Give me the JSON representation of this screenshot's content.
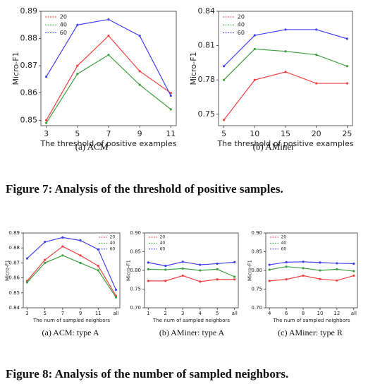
{
  "chart_data": [
    {
      "type": "line",
      "categories": [
        "3",
        "5",
        "7",
        "9",
        "11"
      ],
      "xlabel": "The threshold of positive examples",
      "ylabel": "Micro-F1",
      "ylim": [
        0.848,
        0.89
      ],
      "yticks": [
        0.85,
        0.86,
        0.87,
        0.88,
        0.89
      ],
      "legend": "upper left",
      "caption": "(a)  ACM",
      "series": [
        {
          "name": "20",
          "color": "#f04040",
          "values": [
            0.85,
            0.87,
            0.881,
            0.868,
            0.86
          ]
        },
        {
          "name": "40",
          "color": "#3fa03f",
          "values": [
            0.849,
            0.867,
            0.874,
            0.863,
            0.854
          ]
        },
        {
          "name": "60",
          "color": "#4040f0",
          "values": [
            0.866,
            0.885,
            0.887,
            0.881,
            0.859
          ]
        }
      ]
    },
    {
      "type": "line",
      "categories": [
        "5",
        "10",
        "15",
        "20",
        "25"
      ],
      "xlabel": "The threshold of positive examples",
      "ylabel": "Micro-F1",
      "ylim": [
        0.74,
        0.84
      ],
      "yticks": [
        0.75,
        0.78,
        0.81,
        0.84
      ],
      "legend": "upper left",
      "caption": "(b)  AMiner",
      "series": [
        {
          "name": "20",
          "color": "#f04040",
          "values": [
            0.745,
            0.78,
            0.787,
            0.777,
            0.777
          ]
        },
        {
          "name": "40",
          "color": "#3fa03f",
          "values": [
            0.78,
            0.807,
            0.805,
            0.802,
            0.792
          ]
        },
        {
          "name": "60",
          "color": "#4040f0",
          "values": [
            0.792,
            0.819,
            0.824,
            0.824,
            0.816
          ]
        }
      ]
    },
    {
      "type": "line",
      "categories": [
        "3",
        "5",
        "7",
        "9",
        "11",
        "all"
      ],
      "xlabel": "The num of sampled neighbors",
      "ylabel": "Micro-F1",
      "ylim": [
        0.84,
        0.89
      ],
      "yticks": [
        0.84,
        0.85,
        0.86,
        0.87,
        0.88,
        0.89
      ],
      "legend": "upper right",
      "caption": "(a)  ACM: type A",
      "series": [
        {
          "name": "20",
          "color": "#f04040",
          "values": [
            0.858,
            0.872,
            0.881,
            0.875,
            0.868,
            0.848
          ]
        },
        {
          "name": "40",
          "color": "#3fa03f",
          "values": [
            0.857,
            0.87,
            0.875,
            0.87,
            0.865,
            0.847
          ]
        },
        {
          "name": "60",
          "color": "#4040f0",
          "values": [
            0.873,
            0.884,
            0.887,
            0.885,
            0.879,
            0.852
          ]
        }
      ]
    },
    {
      "type": "line",
      "categories": [
        "1",
        "2",
        "3",
        "4",
        "5",
        "all"
      ],
      "xlabel": "The num of sampled neighbors",
      "ylabel": "Micro-F1",
      "ylim": [
        0.7,
        0.9
      ],
      "yticks": [
        {
          "value": 0.7,
          "label": "0.70"
        },
        0.75,
        {
          "value": 0.8,
          "label": "0.80"
        },
        0.85,
        {
          "value": 0.9,
          "label": "0.90"
        }
      ],
      "legend": "upper left",
      "caption": "(b)  AMiner: type A",
      "series": [
        {
          "name": "20",
          "color": "#f04040",
          "values": [
            0.772,
            0.772,
            0.786,
            0.77,
            0.776,
            0.776
          ]
        },
        {
          "name": "40",
          "color": "#3fa03f",
          "values": [
            0.803,
            0.802,
            0.805,
            0.8,
            0.803,
            0.783
          ]
        },
        {
          "name": "60",
          "color": "#4040f0",
          "values": [
            0.821,
            0.812,
            0.823,
            0.815,
            0.818,
            0.822
          ]
        }
      ]
    },
    {
      "type": "line",
      "categories": [
        "4",
        "6",
        "8",
        "10",
        "12",
        "all"
      ],
      "xlabel": "The num of sampled neighbors",
      "ylabel": "Micro-F1",
      "ylim": [
        0.7,
        0.9
      ],
      "yticks": [
        {
          "value": 0.7,
          "label": "0.70"
        },
        0.75,
        {
          "value": 0.8,
          "label": "0.80"
        },
        0.85,
        {
          "value": 0.9,
          "label": "0.90"
        }
      ],
      "legend": "upper left",
      "caption": "(c)  AMiner: type R",
      "series": [
        {
          "name": "20",
          "color": "#f04040",
          "values": [
            0.772,
            0.776,
            0.786,
            0.777,
            0.773,
            0.786
          ]
        },
        {
          "name": "40",
          "color": "#3fa03f",
          "values": [
            0.802,
            0.81,
            0.806,
            0.8,
            0.803,
            0.798
          ]
        },
        {
          "name": "60",
          "color": "#4040f0",
          "values": [
            0.815,
            0.822,
            0.823,
            0.821,
            0.819,
            0.818
          ]
        }
      ]
    }
  ],
  "figure_captions": [
    "Figure 7: Analysis of the threshold of positive samples.",
    "Figure 8: Analysis of the number of sampled neighbors."
  ]
}
